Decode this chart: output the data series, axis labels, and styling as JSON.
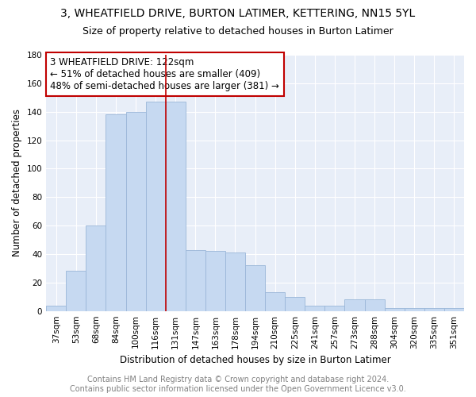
{
  "title": "3, WHEATFIELD DRIVE, BURTON LATIMER, KETTERING, NN15 5YL",
  "subtitle": "Size of property relative to detached houses in Burton Latimer",
  "xlabel": "Distribution of detached houses by size in Burton Latimer",
  "ylabel": "Number of detached properties",
  "categories": [
    "37sqm",
    "53sqm",
    "68sqm",
    "84sqm",
    "100sqm",
    "116sqm",
    "131sqm",
    "147sqm",
    "163sqm",
    "178sqm",
    "194sqm",
    "210sqm",
    "225sqm",
    "241sqm",
    "257sqm",
    "273sqm",
    "288sqm",
    "304sqm",
    "320sqm",
    "335sqm",
    "351sqm"
  ],
  "values": [
    4,
    28,
    60,
    138,
    140,
    147,
    147,
    43,
    42,
    41,
    32,
    13,
    10,
    4,
    4,
    8,
    8,
    2,
    2,
    2,
    2
  ],
  "bar_color": "#c6d9f1",
  "bar_edge_color": "#9ab6d8",
  "vline_x_index": 6,
  "vline_color": "#c00000",
  "annotation_box_text": "3 WHEATFIELD DRIVE: 122sqm\n← 51% of detached houses are smaller (409)\n48% of semi-detached houses are larger (381) →",
  "annotation_box_facecolor": "white",
  "annotation_box_edgecolor": "#c00000",
  "ylim": [
    0,
    180
  ],
  "yticks": [
    0,
    20,
    40,
    60,
    80,
    100,
    120,
    140,
    160,
    180
  ],
  "footer": "Contains HM Land Registry data © Crown copyright and database right 2024.\nContains public sector information licensed under the Open Government Licence v3.0.",
  "footer_color": "#808080",
  "title_fontsize": 10,
  "subtitle_fontsize": 9,
  "axis_label_fontsize": 8.5,
  "tick_fontsize": 7.5,
  "annotation_fontsize": 8.5,
  "footer_fontsize": 7,
  "background_color": "#e8eef8"
}
